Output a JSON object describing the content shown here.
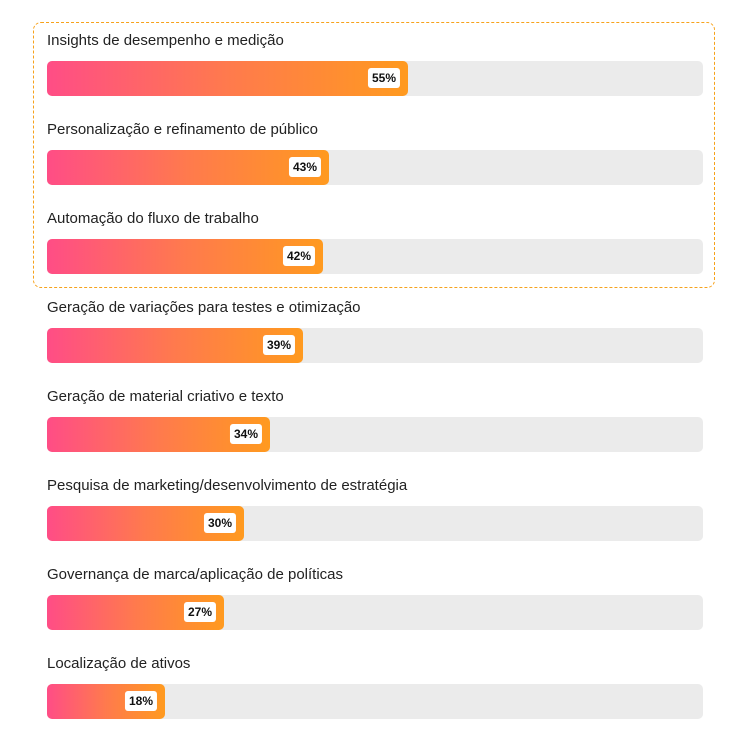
{
  "chart_data": {
    "type": "bar",
    "orientation": "horizontal",
    "categories": [
      "Insights de desempenho e medição",
      "Personalização e refinamento de público",
      "Automação do fluxo de trabalho",
      "Geração de variações para testes e otimização",
      "Geração de material criativo e texto",
      "Pesquisa de marketing/desenvolvimento de estratégia",
      "Governança de marca/aplicação de políticas",
      "Localização de ativos"
    ],
    "values": [
      55,
      43,
      42,
      39,
      34,
      30,
      27,
      18
    ],
    "value_labels": [
      "55%",
      "43%",
      "42%",
      "39%",
      "34%",
      "30%",
      "27%",
      "18%"
    ],
    "xlim": [
      0,
      100
    ],
    "highlighted_categories": [
      0,
      1,
      2
    ],
    "grid": false,
    "colors": {
      "gradient_start": "#ff4d86",
      "gradient_end": "#ff9a1f",
      "track": "#ebebeb",
      "highlight_border": "#f7a21b"
    }
  }
}
